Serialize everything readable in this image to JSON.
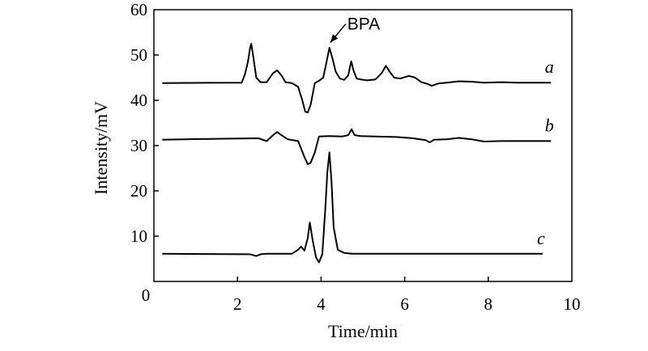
{
  "chart_data": {
    "type": "line",
    "title": "",
    "xlabel": "Time/min",
    "ylabel": "Intensity/mV",
    "xlim": [
      0,
      10
    ],
    "ylim": [
      0,
      60
    ],
    "xticks": [
      0,
      2,
      4,
      6,
      8,
      10
    ],
    "yticks": [
      10,
      20,
      30,
      40,
      50,
      60
    ],
    "origin_label": "0",
    "grid": false,
    "legend": "none",
    "annotations": [
      {
        "text": "BPA",
        "x": 4.2,
        "y": 52.2
      }
    ],
    "series": [
      {
        "name": "a",
        "x": [
          0.2,
          2.1,
          2.18,
          2.25,
          2.3,
          2.33,
          2.38,
          2.45,
          2.55,
          2.7,
          2.85,
          2.95,
          3.05,
          3.15,
          3.3,
          3.45,
          3.55,
          3.62,
          3.68,
          3.75,
          3.85,
          3.95,
          4.05,
          4.12,
          4.2,
          4.28,
          4.35,
          4.45,
          4.55,
          4.65,
          4.72,
          4.78,
          4.85,
          4.95,
          5.1,
          5.3,
          5.45,
          5.55,
          5.65,
          5.75,
          5.9,
          6.1,
          6.25,
          6.4,
          6.55,
          6.65,
          6.8,
          7.0,
          7.3,
          7.6,
          7.9,
          8.3,
          8.7,
          9.1,
          9.5
        ],
        "y": [
          43.8,
          43.9,
          45.8,
          48.5,
          51.5,
          52.5,
          49.5,
          45.0,
          44.0,
          44.0,
          46.0,
          46.6,
          45.5,
          44.0,
          43.8,
          43.0,
          40.0,
          37.5,
          37.3,
          39.0,
          43.8,
          44.3,
          45.0,
          48.0,
          51.6,
          49.0,
          46.3,
          44.8,
          44.5,
          45.5,
          48.6,
          46.5,
          44.8,
          44.6,
          44.4,
          44.6,
          46.0,
          47.6,
          46.2,
          45.0,
          44.8,
          45.4,
          45.0,
          44.0,
          43.6,
          43.2,
          43.7,
          43.9,
          44.2,
          44.1,
          43.9,
          44.0,
          43.9,
          43.9,
          43.9
        ]
      },
      {
        "name": "b",
        "x": [
          0.2,
          1.5,
          2.5,
          2.7,
          2.85,
          2.95,
          3.05,
          3.2,
          3.45,
          3.6,
          3.68,
          3.75,
          3.85,
          3.95,
          4.2,
          4.5,
          4.65,
          4.73,
          4.8,
          4.95,
          5.3,
          5.8,
          6.2,
          6.5,
          6.6,
          6.7,
          7.0,
          7.3,
          7.6,
          7.9,
          8.3,
          8.8,
          9.5
        ],
        "y": [
          31.3,
          31.5,
          31.6,
          31.0,
          32.3,
          33.0,
          32.3,
          31.4,
          31.0,
          27.5,
          25.9,
          26.2,
          28.5,
          32.0,
          32.1,
          32.0,
          32.3,
          33.6,
          32.3,
          32.1,
          32.0,
          31.9,
          31.6,
          31.2,
          30.7,
          31.3,
          31.4,
          31.7,
          31.4,
          30.9,
          31.0,
          31.0,
          31.0
        ]
      },
      {
        "name": "c",
        "x": [
          0.2,
          2.3,
          2.45,
          2.55,
          2.7,
          3.3,
          3.45,
          3.52,
          3.6,
          3.68,
          3.73,
          3.8,
          3.88,
          3.95,
          4.03,
          4.1,
          4.15,
          4.2,
          4.25,
          4.3,
          4.4,
          4.55,
          4.75,
          5.5,
          6.5,
          7.5,
          8.5,
          9.3
        ],
        "y": [
          6.1,
          6.0,
          5.6,
          6.0,
          6.1,
          6.1,
          7.0,
          7.7,
          6.8,
          9.5,
          13.0,
          9.0,
          5.3,
          4.2,
          6.0,
          16.0,
          24.0,
          28.5,
          22.0,
          12.0,
          7.0,
          6.3,
          6.1,
          6.1,
          6.1,
          6.1,
          6.1,
          6.1
        ]
      }
    ]
  }
}
